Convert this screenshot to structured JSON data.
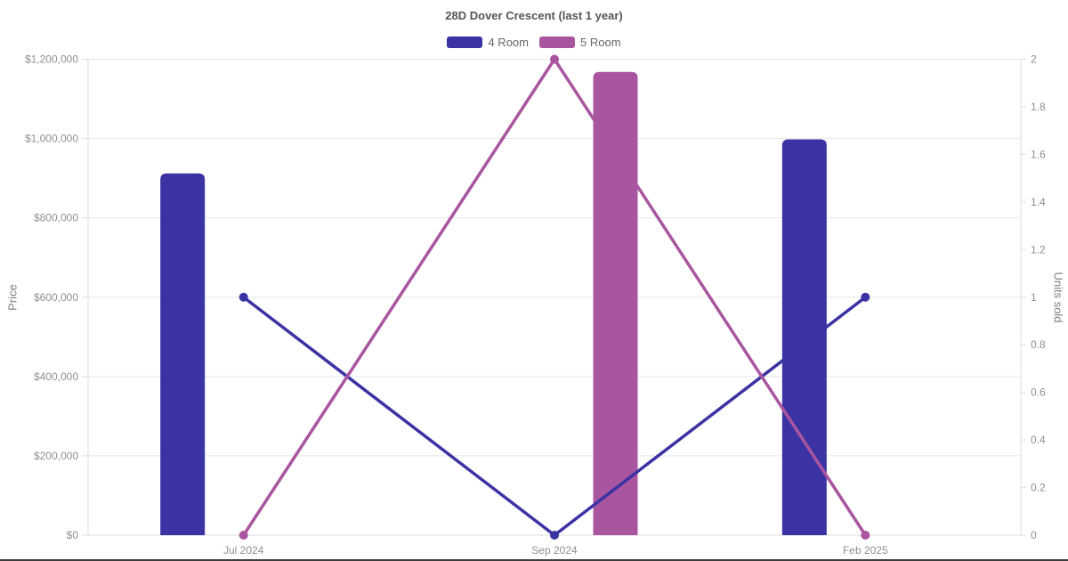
{
  "chart_data": {
    "type": "combo",
    "title": "28D Dover Crescent (last 1 year)",
    "categories": [
      "Jul 2024",
      "Sep 2024",
      "Feb 2025"
    ],
    "series": [
      {
        "name": "4 Room",
        "color": "#3b33a4",
        "bar_values_price": [
          912000,
          null,
          998000
        ],
        "line_values_units_sold": [
          1,
          0,
          1
        ]
      },
      {
        "name": "5 Room",
        "color": "#a9559f",
        "bar_values_price": [
          null,
          1168000,
          null
        ],
        "line_values_units_sold": [
          0,
          2,
          0
        ]
      }
    ],
    "axes": {
      "left": {
        "label": "Price",
        "min": 0,
        "max": 1200000,
        "tick_step": 200000,
        "tick_prefix": "$"
      },
      "right": {
        "label": "Units sold",
        "min": 0,
        "max": 2,
        "tick_step": 0.2
      }
    },
    "legend_position": "top",
    "grid": "horizontal"
  },
  "colors": {
    "grid": "#e7e7e7",
    "axis_line": "#dcdcdc",
    "tick_text": "#8f8f8f",
    "title_text": "#555555",
    "legend_text": "#666666"
  }
}
